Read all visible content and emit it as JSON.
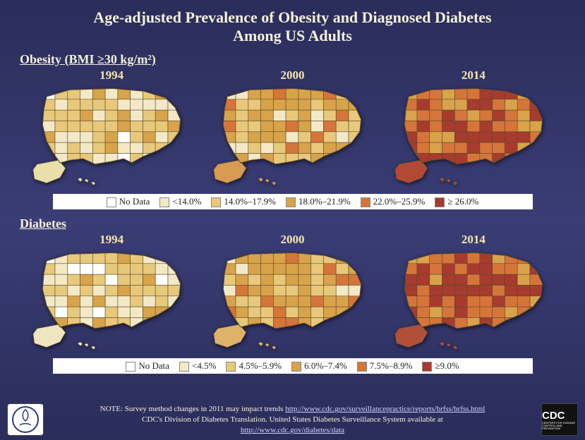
{
  "title": {
    "line1": "Age-adjusted Prevalence of Obesity and Diagnosed Diabetes",
    "line2": "Among US Adults",
    "fontsize": 22,
    "color": "#f5f0dc"
  },
  "background_gradient": [
    "#2a2d5a",
    "#3a3d75",
    "#2a2d5a"
  ],
  "palette_obesity": {
    "no_data": "#ffffff",
    "lt14": "#f3e9c6",
    "14_18": "#e8c87a",
    "18_22": "#d8a34a",
    "22_26": "#d6753a",
    "ge26": "#a63b2e"
  },
  "palette_diabetes": {
    "no_data": "#ffffff",
    "lt45": "#f3e9c6",
    "45_59": "#e8c87a",
    "60_74": "#d8a34a",
    "75_89": "#d6753a",
    "ge90": "#a63b2e"
  },
  "sections": [
    {
      "key": "obesity",
      "label": "Obesity (BMI ≥30 kg/m²)",
      "years": [
        "1994",
        "2000",
        "2014"
      ],
      "legend": [
        {
          "swatch": "#ffffff",
          "label": "No Data"
        },
        {
          "swatch": "#f3e9c6",
          "label": "<14.0%"
        },
        {
          "swatch": "#e8c87a",
          "label": "14.0%–17.9%"
        },
        {
          "swatch": "#d8a34a",
          "label": "18.0%–21.9%"
        },
        {
          "swatch": "#d6753a",
          "label": "22.0%–25.9%"
        },
        {
          "swatch": "#a63b2e",
          "label": "≥ 26.0%"
        }
      ],
      "map_overall_tint": {
        "1994": "#eadfa8",
        "2000": "#d89b52",
        "2014": "#b04a36"
      }
    },
    {
      "key": "diabetes",
      "label": "Diabetes",
      "years": [
        "1994",
        "2000",
        "2014"
      ],
      "legend": [
        {
          "swatch": "#ffffff",
          "label": "No Data"
        },
        {
          "swatch": "#f3e9c6",
          "label": "<4.5%"
        },
        {
          "swatch": "#e8c87a",
          "label": "4.5%–5.9%"
        },
        {
          "swatch": "#d8a34a",
          "label": "6.0%–7.4%"
        },
        {
          "swatch": "#d6753a",
          "label": "7.5%–8.9%"
        },
        {
          "swatch": "#a63b2e",
          "label": "≥9.0%"
        }
      ],
      "map_overall_tint": {
        "1994": "#efe6c0",
        "2000": "#deb369",
        "2014": "#b24f38"
      }
    }
  ],
  "state_outline_color": "#5a4a2a",
  "state_outline_width": 0.6,
  "footer": {
    "note_prefix": "NOTE: Survey method changes in 2011 may impact trends ",
    "note_link": "http://www.cdc.gov/surveillancepractice/reports/brfss/brfss.html",
    "line2": "CDC's Division of Diabetes Translation. United States Diabetes Surveillance System available at",
    "line3_link": "http://www.cdc.gov/diabetes/data",
    "fontsize": 11
  },
  "logos": {
    "left_alt": "HHS",
    "right_text": "CDC",
    "right_sub": "CENTERS FOR DISEASE CONTROL AND PREVENTION"
  }
}
